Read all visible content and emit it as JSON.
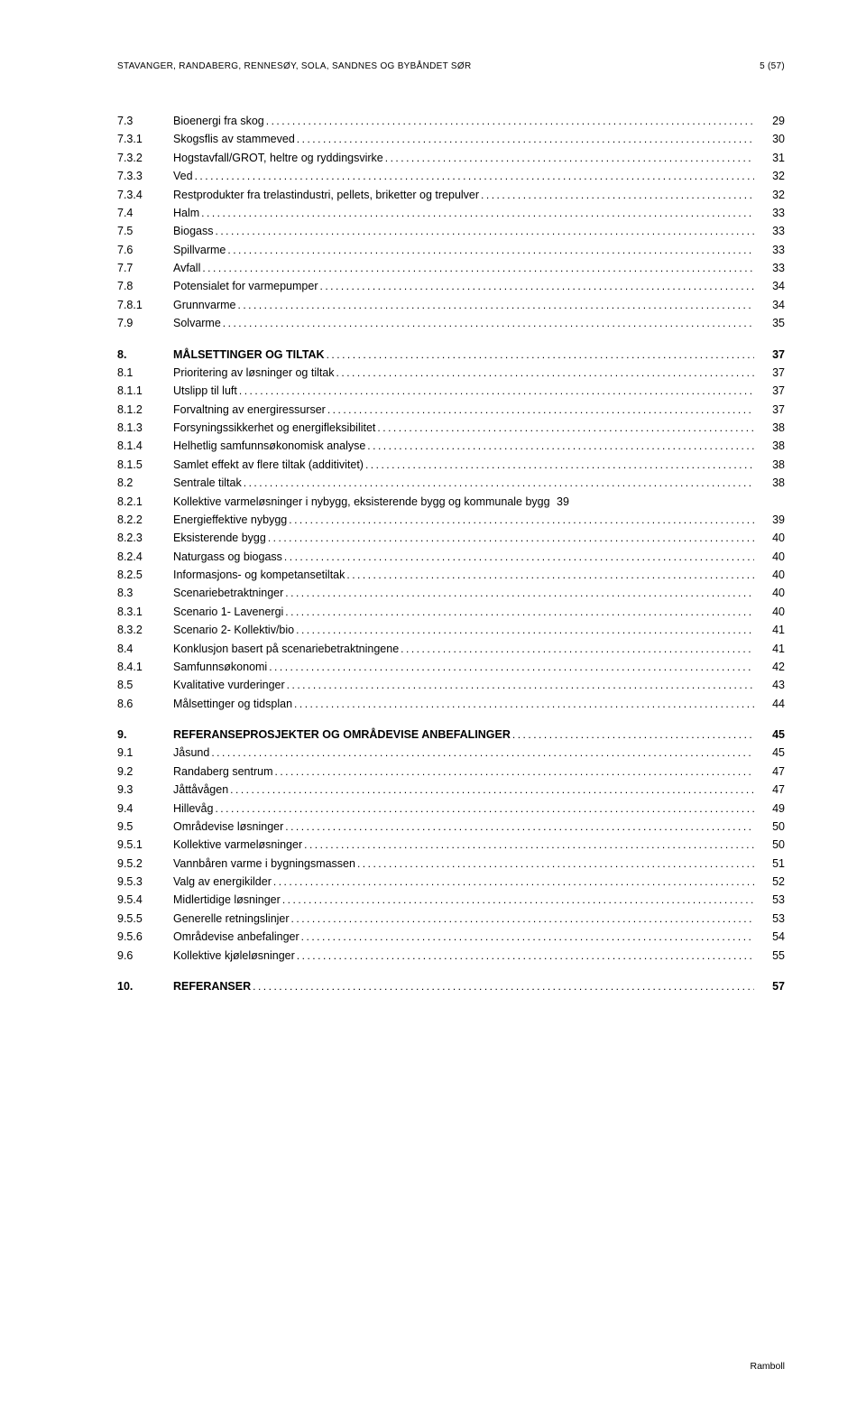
{
  "header": {
    "left": "STAVANGER, RANDABERG, RENNESØY, SOLA, SANDNES OG BYBÅNDET SØR",
    "right": "5 (57)"
  },
  "footer": "Ramboll",
  "toc": [
    {
      "num": "7.3",
      "title": "Bioenergi fra skog",
      "page": "29",
      "bold": false
    },
    {
      "num": "7.3.1",
      "title": "Skogsflis av stammeved",
      "page": "30",
      "bold": false
    },
    {
      "num": "7.3.2",
      "title": "Hogstavfall/GROT, heltre og ryddingsvirke",
      "page": "31",
      "bold": false
    },
    {
      "num": "7.3.3",
      "title": "Ved",
      "page": "32",
      "bold": false
    },
    {
      "num": "7.3.4",
      "title": "Restprodukter fra trelastindustri, pellets, briketter og trepulver",
      "page": "32",
      "bold": false
    },
    {
      "num": "7.4",
      "title": "Halm",
      "page": "33",
      "bold": false
    },
    {
      "num": "7.5",
      "title": "Biogass",
      "page": "33",
      "bold": false
    },
    {
      "num": "7.6",
      "title": "Spillvarme",
      "page": "33",
      "bold": false
    },
    {
      "num": "7.7",
      "title": "Avfall",
      "page": "33",
      "bold": false
    },
    {
      "num": "7.8",
      "title": "Potensialet for varmepumper",
      "page": "34",
      "bold": false
    },
    {
      "num": "7.8.1",
      "title": "Grunnvarme",
      "page": "34",
      "bold": false
    },
    {
      "num": "7.9",
      "title": "Solvarme",
      "page": "35",
      "bold": false
    },
    {
      "gap": true
    },
    {
      "num": "8.",
      "title": "MÅLSETTINGER OG TILTAK",
      "page": "37",
      "bold": true
    },
    {
      "num": "8.1",
      "title": "Prioritering av løsninger og tiltak",
      "page": "37",
      "bold": false
    },
    {
      "num": "8.1.1",
      "title": "Utslipp til luft",
      "page": "37",
      "bold": false
    },
    {
      "num": "8.1.2",
      "title": "Forvaltning av energiressurser",
      "page": "37",
      "bold": false
    },
    {
      "num": "8.1.3",
      "title": "Forsyningssikkerhet og energifleksibilitet",
      "page": "38",
      "bold": false
    },
    {
      "num": "8.1.4",
      "title": "Helhetlig samfunnsøkonomisk analyse",
      "page": "38",
      "bold": false
    },
    {
      "num": "8.1.5",
      "title": "Samlet effekt av flere tiltak (additivitet)",
      "page": "38",
      "bold": false
    },
    {
      "num": "8.2",
      "title": "Sentrale tiltak",
      "page": "38",
      "bold": false
    },
    {
      "num": "8.2.1",
      "title": "Kollektive varmeløsninger i nybygg, eksisterende bygg og kommunale bygg",
      "page": "39",
      "bold": false,
      "nodots": true
    },
    {
      "num": "8.2.2",
      "title": "Energieffektive nybygg",
      "page": "39",
      "bold": false
    },
    {
      "num": "8.2.3",
      "title": "Eksisterende bygg",
      "page": "40",
      "bold": false
    },
    {
      "num": "8.2.4",
      "title": "Naturgass og biogass",
      "page": "40",
      "bold": false
    },
    {
      "num": "8.2.5",
      "title": "Informasjons- og kompetansetiltak",
      "page": "40",
      "bold": false
    },
    {
      "num": "8.3",
      "title": "Scenariebetraktninger",
      "page": "40",
      "bold": false
    },
    {
      "num": "8.3.1",
      "title": "Scenario 1- Lavenergi",
      "page": "40",
      "bold": false
    },
    {
      "num": "8.3.2",
      "title": "Scenario 2- Kollektiv/bio",
      "page": "41",
      "bold": false
    },
    {
      "num": "8.4",
      "title": "Konklusjon basert på scenariebetraktningene",
      "page": "41",
      "bold": false
    },
    {
      "num": "8.4.1",
      "title": "Samfunnsøkonomi",
      "page": "42",
      "bold": false
    },
    {
      "num": "8.5",
      "title": "Kvalitative vurderinger",
      "page": "43",
      "bold": false
    },
    {
      "num": "8.6",
      "title": "Målsettinger og tidsplan",
      "page": "44",
      "bold": false
    },
    {
      "gap": true
    },
    {
      "num": "9.",
      "title": "REFERANSEPROSJEKTER OG OMRÅDEVISE ANBEFALINGER",
      "page": "45",
      "bold": true
    },
    {
      "num": "9.1",
      "title": "Jåsund",
      "page": "45",
      "bold": false
    },
    {
      "num": "9.2",
      "title": "Randaberg sentrum",
      "page": "47",
      "bold": false
    },
    {
      "num": "9.3",
      "title": "Jåttåvågen",
      "page": "47",
      "bold": false
    },
    {
      "num": "9.4",
      "title": "Hillevåg",
      "page": "49",
      "bold": false
    },
    {
      "num": "9.5",
      "title": "Områdevise løsninger",
      "page": "50",
      "bold": false
    },
    {
      "num": "9.5.1",
      "title": "Kollektive varmeløsninger",
      "page": "50",
      "bold": false
    },
    {
      "num": "9.5.2",
      "title": "Vannbåren varme i bygningsmassen",
      "page": "51",
      "bold": false
    },
    {
      "num": "9.5.3",
      "title": "Valg av energikilder",
      "page": "52",
      "bold": false
    },
    {
      "num": "9.5.4",
      "title": "Midlertidige løsninger",
      "page": "53",
      "bold": false
    },
    {
      "num": "9.5.5",
      "title": "Generelle retningslinjer",
      "page": "53",
      "bold": false
    },
    {
      "num": "9.5.6",
      "title": "Områdevise anbefalinger",
      "page": "54",
      "bold": false
    },
    {
      "num": "9.6",
      "title": "Kollektive kjøleløsninger",
      "page": "55",
      "bold": false
    },
    {
      "gap": true
    },
    {
      "num": "10.",
      "title": "REFERANSER",
      "page": "57",
      "bold": true
    }
  ]
}
